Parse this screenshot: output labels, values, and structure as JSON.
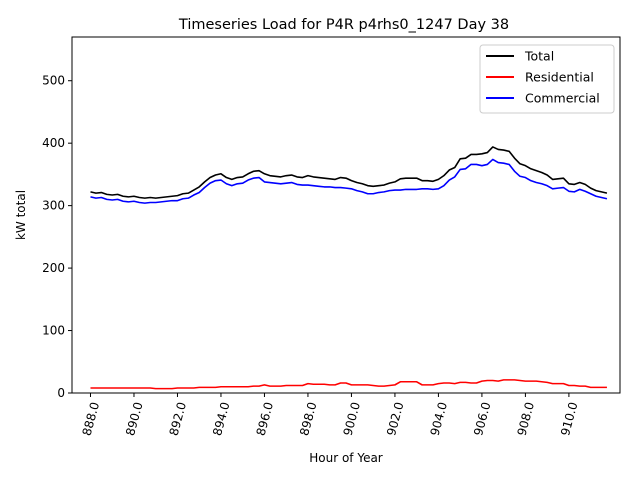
{
  "chart_data": {
    "type": "line",
    "title": "Timeseries Load for P4R p4rhs0_1247  Day 38",
    "xlabel": "Hour of Year",
    "ylabel": "kW total",
    "xlim": [
      887.15,
      912.35
    ],
    "ylim": [
      0,
      570
    ],
    "x_ticks": [
      888.0,
      890.0,
      892.0,
      894.0,
      896.0,
      898.0,
      900.0,
      902.0,
      904.0,
      906.0,
      908.0,
      910.0
    ],
    "x_tick_labels": [
      "888.0",
      "890.0",
      "892.0",
      "894.0",
      "896.0",
      "898.0",
      "900.0",
      "902.0",
      "904.0",
      "906.0",
      "908.0",
      "910.0"
    ],
    "y_ticks": [
      0,
      100,
      200,
      300,
      400,
      500
    ],
    "y_tick_labels": [
      "0",
      "100",
      "200",
      "300",
      "400",
      "500"
    ],
    "grid": false,
    "legend_position": "top-right",
    "x": [
      888.0,
      888.25,
      888.5,
      888.75,
      889.0,
      889.25,
      889.5,
      889.75,
      890.0,
      890.25,
      890.5,
      890.75,
      891.0,
      891.25,
      891.5,
      891.75,
      892.0,
      892.25,
      892.5,
      892.75,
      893.0,
      893.25,
      893.5,
      893.75,
      894.0,
      894.25,
      894.5,
      894.75,
      895.0,
      895.25,
      895.5,
      895.75,
      896.0,
      896.25,
      896.5,
      896.75,
      897.0,
      897.25,
      897.5,
      897.75,
      898.0,
      898.25,
      898.5,
      898.75,
      899.0,
      899.25,
      899.5,
      899.75,
      900.0,
      900.25,
      900.5,
      900.75,
      901.0,
      901.25,
      901.5,
      901.75,
      902.0,
      902.25,
      902.5,
      902.75,
      903.0,
      903.25,
      903.5,
      903.75,
      904.0,
      904.25,
      904.5,
      904.75,
      905.0,
      905.25,
      905.5,
      905.75,
      906.0,
      906.25,
      906.5,
      906.75,
      907.0,
      907.25,
      907.5,
      907.75,
      908.0,
      908.25,
      908.5,
      908.75,
      909.0,
      909.25,
      909.5,
      909.75,
      910.0,
      910.25,
      910.5,
      910.75,
      911.0,
      911.25,
      911.5,
      911.75
    ],
    "series": [
      {
        "name": "Total",
        "color": "#000000",
        "values": [
          322,
          320,
          321,
          318,
          317,
          318,
          315,
          314,
          315,
          313,
          312,
          313,
          312,
          313,
          314,
          315,
          316,
          319,
          320,
          325,
          330,
          338,
          345,
          349,
          351,
          345,
          342,
          345,
          346,
          351,
          355,
          356,
          351,
          348,
          347,
          346,
          348,
          349,
          346,
          345,
          348,
          346,
          345,
          344,
          343,
          342,
          345,
          344,
          340,
          337,
          335,
          332,
          331,
          332,
          333,
          336,
          338,
          343,
          344,
          344,
          344,
          340,
          340,
          339,
          342,
          348,
          357,
          361,
          375,
          376,
          382,
          382,
          383,
          385,
          394,
          390,
          389,
          387,
          376,
          367,
          364,
          359,
          356,
          353,
          349,
          342,
          343,
          344,
          335,
          334,
          337,
          334,
          328,
          324,
          322,
          320
        ]
      },
      {
        "name": "Residential",
        "color": "#ff0000",
        "values": [
          8,
          8,
          8,
          8,
          8,
          8,
          8,
          8,
          8,
          8,
          8,
          8,
          7,
          7,
          7,
          7,
          8,
          8,
          8,
          8,
          9,
          9,
          9,
          9,
          10,
          10,
          10,
          10,
          10,
          10,
          11,
          11,
          13,
          11,
          11,
          11,
          12,
          12,
          12,
          12,
          15,
          14,
          14,
          14,
          13,
          13,
          16,
          16,
          13,
          13,
          13,
          13,
          12,
          11,
          11,
          12,
          13,
          18,
          18,
          18,
          18,
          13,
          13,
          13,
          15,
          16,
          16,
          15,
          17,
          17,
          16,
          16,
          19,
          20,
          20,
          19,
          21,
          21,
          21,
          20,
          19,
          19,
          19,
          18,
          17,
          15,
          15,
          15,
          12,
          12,
          11,
          11,
          9,
          9,
          9,
          9
        ]
      },
      {
        "name": "Commercial",
        "color": "#0000ff",
        "values": [
          314,
          312,
          313,
          310,
          309,
          310,
          307,
          306,
          307,
          305,
          304,
          305,
          305,
          306,
          307,
          308,
          308,
          311,
          312,
          317,
          321,
          329,
          336,
          340,
          341,
          335,
          332,
          335,
          336,
          341,
          344,
          345,
          338,
          337,
          336,
          335,
          336,
          337,
          334,
          333,
          333,
          332,
          331,
          330,
          330,
          329,
          329,
          328,
          327,
          324,
          322,
          319,
          319,
          321,
          322,
          324,
          325,
          325,
          326,
          326,
          326,
          327,
          327,
          326,
          327,
          332,
          341,
          346,
          358,
          359,
          366,
          366,
          364,
          366,
          374,
          369,
          368,
          366,
          355,
          347,
          345,
          340,
          337,
          335,
          332,
          327,
          328,
          329,
          323,
          322,
          326,
          323,
          319,
          315,
          313,
          311
        ]
      }
    ]
  }
}
